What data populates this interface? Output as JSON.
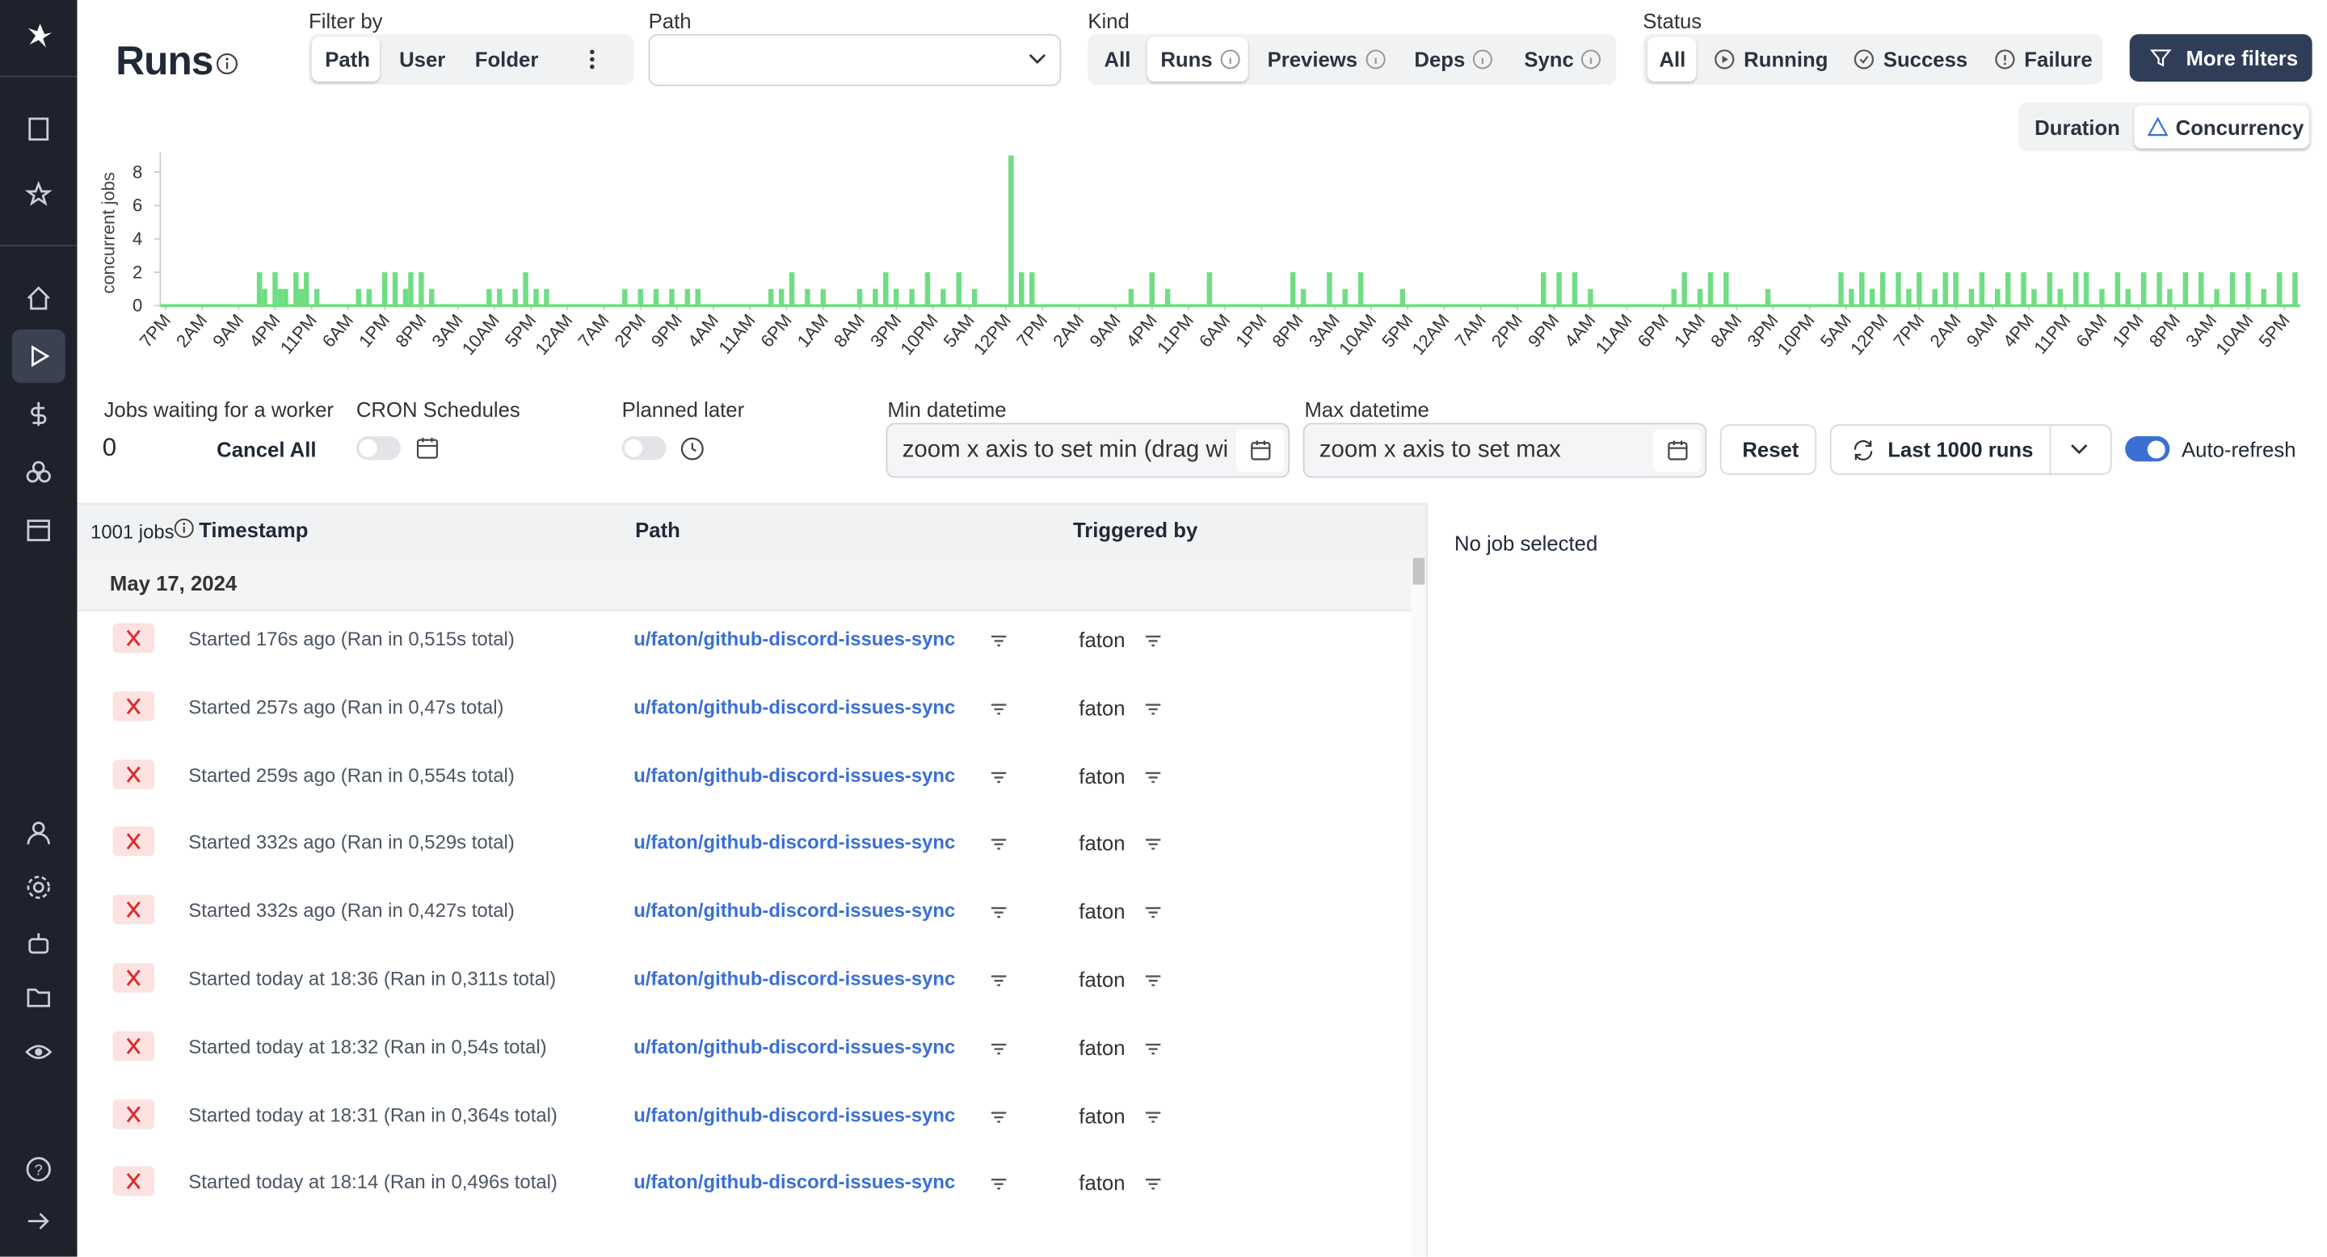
{
  "header": {
    "title": "Runs"
  },
  "filters": {
    "filter_by": {
      "label": "Filter by",
      "options": [
        "Path",
        "User",
        "Folder"
      ]
    },
    "path": {
      "label": "Path"
    },
    "kind": {
      "label": "Kind",
      "options": [
        "All",
        "Runs",
        "Previews",
        "Deps",
        "Sync"
      ]
    },
    "status": {
      "label": "Status",
      "options": [
        "All",
        "Running",
        "Success",
        "Failure"
      ]
    },
    "more_filters": "More filters"
  },
  "chart_toggle": [
    "Duration",
    "Concurrency"
  ],
  "chart_data": {
    "type": "bar",
    "ylabel": "concurrent jobs",
    "color": "#6fde82",
    "grid": false,
    "x": [
      19,
      20,
      22,
      23,
      24,
      26,
      27,
      28,
      30,
      38,
      40,
      43,
      45,
      47,
      48,
      50,
      52,
      63,
      65,
      68,
      70,
      72,
      74,
      89,
      92,
      95,
      98,
      101,
      103,
      117,
      119,
      121,
      124,
      127,
      134,
      137,
      139,
      141,
      144,
      147,
      150,
      153,
      156,
      163,
      165,
      167,
      186,
      190,
      193,
      201,
      217,
      219,
      224,
      227,
      230,
      238,
      265,
      268,
      271,
      274,
      290,
      292,
      295,
      297,
      300,
      308,
      322,
      324,
      326,
      328,
      330,
      333,
      335,
      337,
      340,
      342,
      344,
      347,
      349,
      352,
      354,
      357,
      359,
      362,
      364,
      367,
      369,
      372,
      375,
      377,
      380,
      383,
      385,
      388,
      391,
      394,
      397,
      400,
      403,
      406,
      409
    ],
    "values": [
      2,
      1,
      2,
      1,
      1,
      2,
      1,
      2,
      1,
      1,
      1,
      2,
      2,
      1,
      2,
      2,
      1,
      1,
      1,
      1,
      2,
      1,
      1,
      1,
      1,
      1,
      1,
      1,
      1,
      1,
      1,
      2,
      1,
      1,
      1,
      1,
      2,
      1,
      1,
      2,
      1,
      2,
      1,
      9,
      2,
      2,
      1,
      2,
      1,
      2,
      2,
      1,
      2,
      1,
      2,
      1,
      2,
      2,
      2,
      1,
      1,
      2,
      1,
      2,
      2,
      1,
      2,
      1,
      2,
      1,
      2,
      2,
      1,
      2,
      1,
      2,
      2,
      1,
      2,
      1,
      2,
      2,
      1,
      2,
      1,
      2,
      2,
      1,
      2,
      1,
      2,
      2,
      1,
      2,
      2,
      1,
      2,
      2,
      1,
      2,
      2
    ],
    "xlim": [
      0,
      410
    ],
    "ylim": [
      0,
      9
    ],
    "yticks": [
      0,
      2,
      4,
      6,
      8
    ],
    "xticks": [
      {
        "value": 1,
        "label": "7PM"
      },
      {
        "value": 8,
        "label": "2AM"
      },
      {
        "value": 15,
        "label": "9AM"
      },
      {
        "value": 22,
        "label": "4PM"
      },
      {
        "value": 29,
        "label": "11PM"
      },
      {
        "value": 36,
        "label": "6AM"
      },
      {
        "value": 43,
        "label": "1PM"
      },
      {
        "value": 50,
        "label": "8PM"
      },
      {
        "value": 57,
        "label": "3AM"
      },
      {
        "value": 64,
        "label": "10AM"
      },
      {
        "value": 71,
        "label": "5PM"
      },
      {
        "value": 78,
        "label": "12AM"
      },
      {
        "value": 85,
        "label": "7AM"
      },
      {
        "value": 92,
        "label": "2PM"
      },
      {
        "value": 99,
        "label": "9PM"
      },
      {
        "value": 106,
        "label": "4AM"
      },
      {
        "value": 113,
        "label": "11AM"
      },
      {
        "value": 120,
        "label": "6PM"
      },
      {
        "value": 127,
        "label": "1AM"
      },
      {
        "value": 134,
        "label": "8AM"
      },
      {
        "value": 141,
        "label": "3PM"
      },
      {
        "value": 148,
        "label": "10PM"
      },
      {
        "value": 155,
        "label": "5AM"
      },
      {
        "value": 162,
        "label": "12PM"
      },
      {
        "value": 169,
        "label": "7PM"
      },
      {
        "value": 176,
        "label": "2AM"
      },
      {
        "value": 183,
        "label": "9AM"
      },
      {
        "value": 190,
        "label": "4PM"
      },
      {
        "value": 197,
        "label": "11PM"
      },
      {
        "value": 204,
        "label": "6AM"
      },
      {
        "value": 211,
        "label": "1PM"
      },
      {
        "value": 218,
        "label": "8PM"
      },
      {
        "value": 225,
        "label": "3AM"
      },
      {
        "value": 232,
        "label": "10AM"
      },
      {
        "value": 239,
        "label": "5PM"
      },
      {
        "value": 246,
        "label": "12AM"
      },
      {
        "value": 253,
        "label": "7AM"
      },
      {
        "value": 260,
        "label": "2PM"
      },
      {
        "value": 267,
        "label": "9PM"
      },
      {
        "value": 274,
        "label": "4AM"
      },
      {
        "value": 281,
        "label": "11AM"
      },
      {
        "value": 288,
        "label": "6PM"
      },
      {
        "value": 295,
        "label": "1AM"
      },
      {
        "value": 302,
        "label": "8AM"
      },
      {
        "value": 309,
        "label": "3PM"
      },
      {
        "value": 316,
        "label": "10PM"
      },
      {
        "value": 323,
        "label": "5AM"
      },
      {
        "value": 330,
        "label": "12PM"
      },
      {
        "value": 337,
        "label": "7PM"
      },
      {
        "value": 344,
        "label": "2AM"
      },
      {
        "value": 351,
        "label": "9AM"
      },
      {
        "value": 358,
        "label": "4PM"
      },
      {
        "value": 365,
        "label": "11PM"
      },
      {
        "value": 372,
        "label": "6AM"
      },
      {
        "value": 379,
        "label": "1PM"
      },
      {
        "value": 386,
        "label": "8PM"
      },
      {
        "value": 393,
        "label": "3AM"
      },
      {
        "value": 400,
        "label": "10AM"
      },
      {
        "value": 407,
        "label": "5PM"
      }
    ]
  },
  "controls": {
    "jobs_waiting": {
      "label": "Jobs waiting for a worker",
      "value": "0"
    },
    "cancel_all": "Cancel All",
    "cron": "CRON Schedules",
    "planned": "Planned later",
    "min": {
      "label": "Min datetime",
      "placeholder": "zoom x axis to set min (drag wi"
    },
    "max": {
      "label": "Max datetime",
      "placeholder": "zoom x axis to set max"
    },
    "reset": "Reset",
    "last_runs": "Last 1000 runs",
    "auto_refresh": "Auto-refresh"
  },
  "table": {
    "count": "1001 jobs",
    "headers": [
      "Timestamp",
      "Path",
      "Triggered by"
    ],
    "date": "May 17, 2024",
    "rows": [
      [
        "Started 176s ago (Ran in 0,515s total)",
        "u/faton/github-discord-issues-sync",
        "faton"
      ],
      [
        "Started 257s ago (Ran in 0,47s total)",
        "u/faton/github-discord-issues-sync",
        "faton"
      ],
      [
        "Started 259s ago (Ran in 0,554s total)",
        "u/faton/github-discord-issues-sync",
        "faton"
      ],
      [
        "Started 332s ago (Ran in 0,529s total)",
        "u/faton/github-discord-issues-sync",
        "faton"
      ],
      [
        "Started 332s ago (Ran in 0,427s total)",
        "u/faton/github-discord-issues-sync",
        "faton"
      ],
      [
        "Started today at 18:36 (Ran in 0,311s total)",
        "u/faton/github-discord-issues-sync",
        "faton"
      ],
      [
        "Started today at 18:32 (Ran in 0,54s total)",
        "u/faton/github-discord-issues-sync",
        "faton"
      ],
      [
        "Started today at 18:31 (Ran in 0,364s total)",
        "u/faton/github-discord-issues-sync",
        "faton"
      ],
      [
        "Started today at 18:14 (Ran in 0,496s total)",
        "u/faton/github-discord-issues-sync",
        "faton"
      ]
    ]
  },
  "detail": "No job selected"
}
